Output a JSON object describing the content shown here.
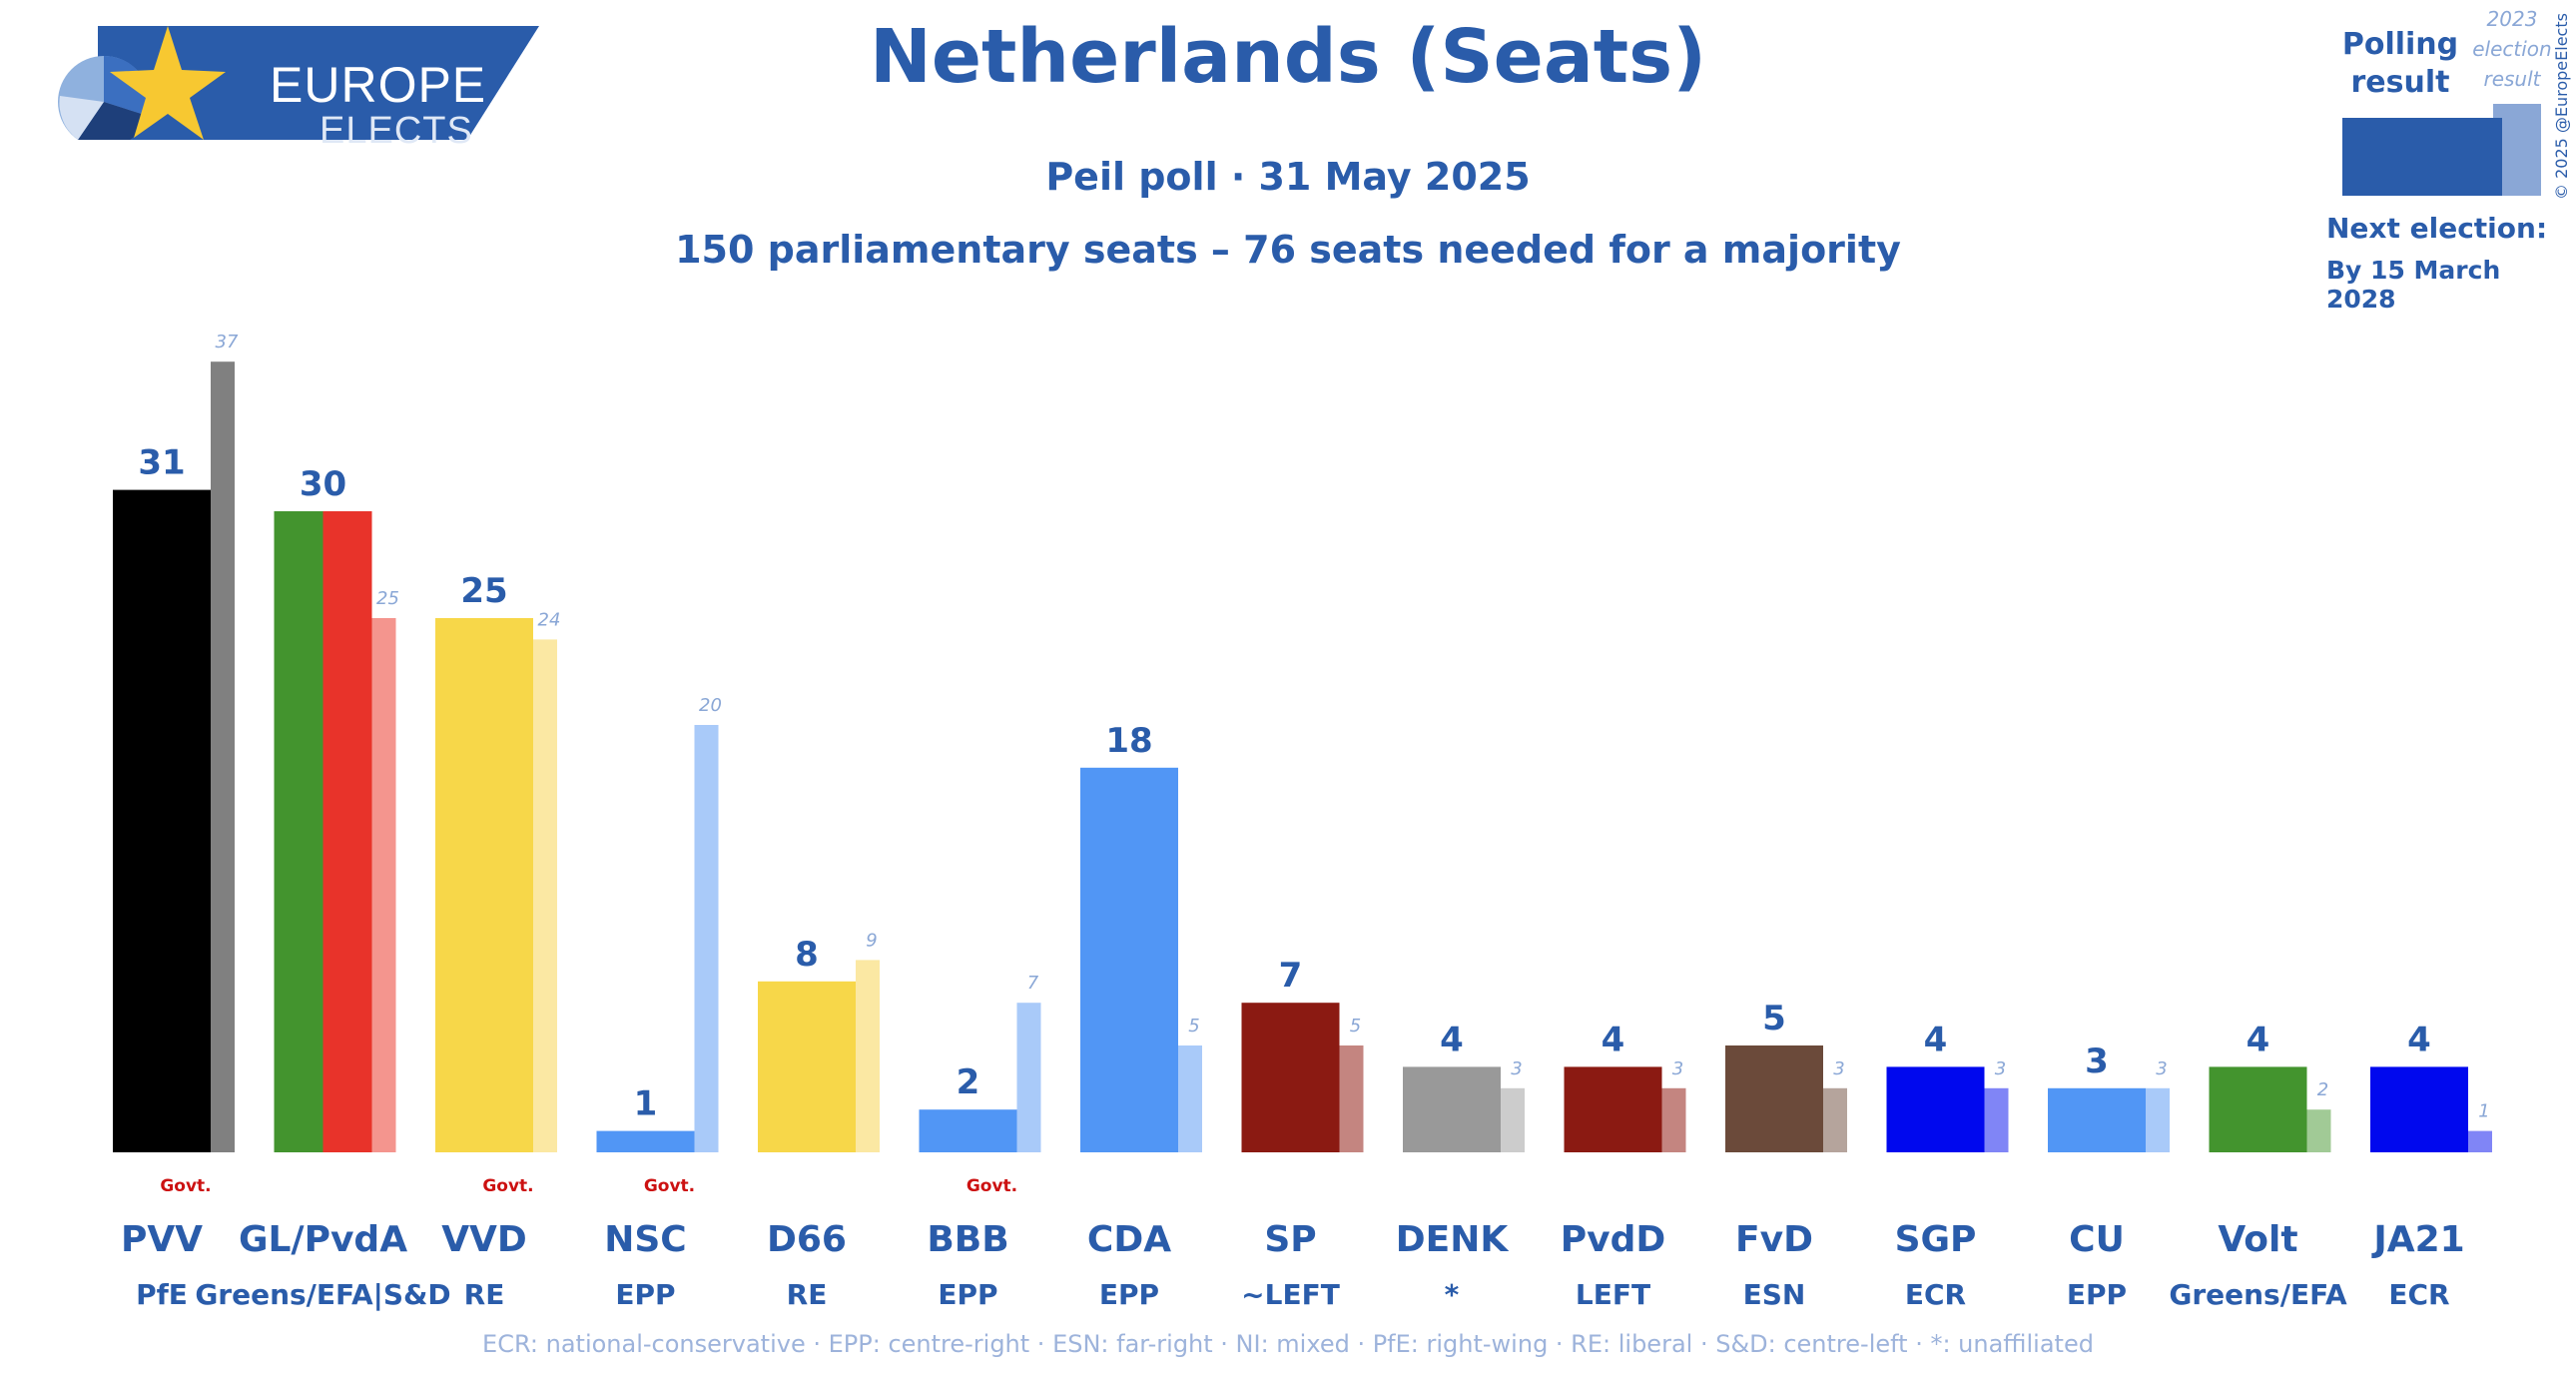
{
  "header": {
    "logo_line1": "EUROPE",
    "logo_line2": "ELECTS",
    "title": "Netherlands (Seats)",
    "subtitle": "Peil poll · 31 May 2025",
    "subtitle2": "150 parliamentary seats – 76 seats needed for a majority"
  },
  "legend": {
    "poll_label": "Polling result",
    "prev_label": "2023 election result",
    "copyright": "© 2025 @EuropeElects",
    "next_election_label": "Next election:",
    "next_election_date": "By 15 March 2028"
  },
  "colors": {
    "brand": "#2a5caa",
    "govt_marker": "#cc1111",
    "prev_label": "#8aa7d6"
  },
  "footnote": "ECR: national-conservative · EPP: centre-right · ESN: far-right · NI: mixed · PfE: right-wing · RE: liberal · S&D: centre-left · *: unaffiliated",
  "chart_data": {
    "type": "bar",
    "ylim": [
      0,
      37
    ],
    "categories": [
      "PVV",
      "GL/PvdA",
      "VVD",
      "NSC",
      "D66",
      "BBB",
      "CDA",
      "SP",
      "DENK",
      "PvdD",
      "FvD",
      "SGP",
      "CU",
      "Volt",
      "JA21"
    ],
    "groups": [
      "PfE",
      "Greens/EFA|S&D",
      "RE",
      "EPP",
      "RE",
      "EPP",
      "EPP",
      "~LEFT",
      "*",
      "LEFT",
      "ESN",
      "ECR",
      "EPP",
      "Greens/EFA",
      "ECR"
    ],
    "government": [
      true,
      false,
      true,
      true,
      false,
      true,
      false,
      false,
      false,
      false,
      false,
      false,
      false,
      false,
      false
    ],
    "govt_label": "Govt.",
    "series": [
      {
        "name": "Polling result",
        "values": [
          31,
          30,
          25,
          1,
          8,
          2,
          18,
          7,
          4,
          4,
          5,
          4,
          3,
          4,
          4
        ]
      },
      {
        "name": "2023 election result",
        "values": [
          37,
          25,
          24,
          20,
          9,
          7,
          5,
          5,
          3,
          3,
          3,
          3,
          3,
          2,
          1
        ]
      }
    ],
    "poll_colors": [
      [
        "#000000"
      ],
      [
        "#43942e",
        "#e8332a"
      ],
      [
        "#f7d749"
      ],
      [
        "#5196f5"
      ],
      [
        "#f7d749"
      ],
      [
        "#5196f5"
      ],
      [
        "#5196f5"
      ],
      [
        "#8b1a12"
      ],
      [
        "#999999"
      ],
      [
        "#8b1a12"
      ],
      [
        "#6b4a3a"
      ],
      [
        "#0008ee"
      ],
      [
        "#5196f5"
      ],
      [
        "#43942e"
      ],
      [
        "#0008ee"
      ]
    ],
    "prev_colors": [
      "#808080",
      "#f4958e",
      "#fbe8a3",
      "#a9caf9",
      "#fbe8a3",
      "#a9caf9",
      "#a9caf9",
      "#c48580",
      "#cccccc",
      "#c48580",
      "#b5a49c",
      "#8085f6",
      "#a9caf9",
      "#a1ca96",
      "#8085f6"
    ]
  }
}
